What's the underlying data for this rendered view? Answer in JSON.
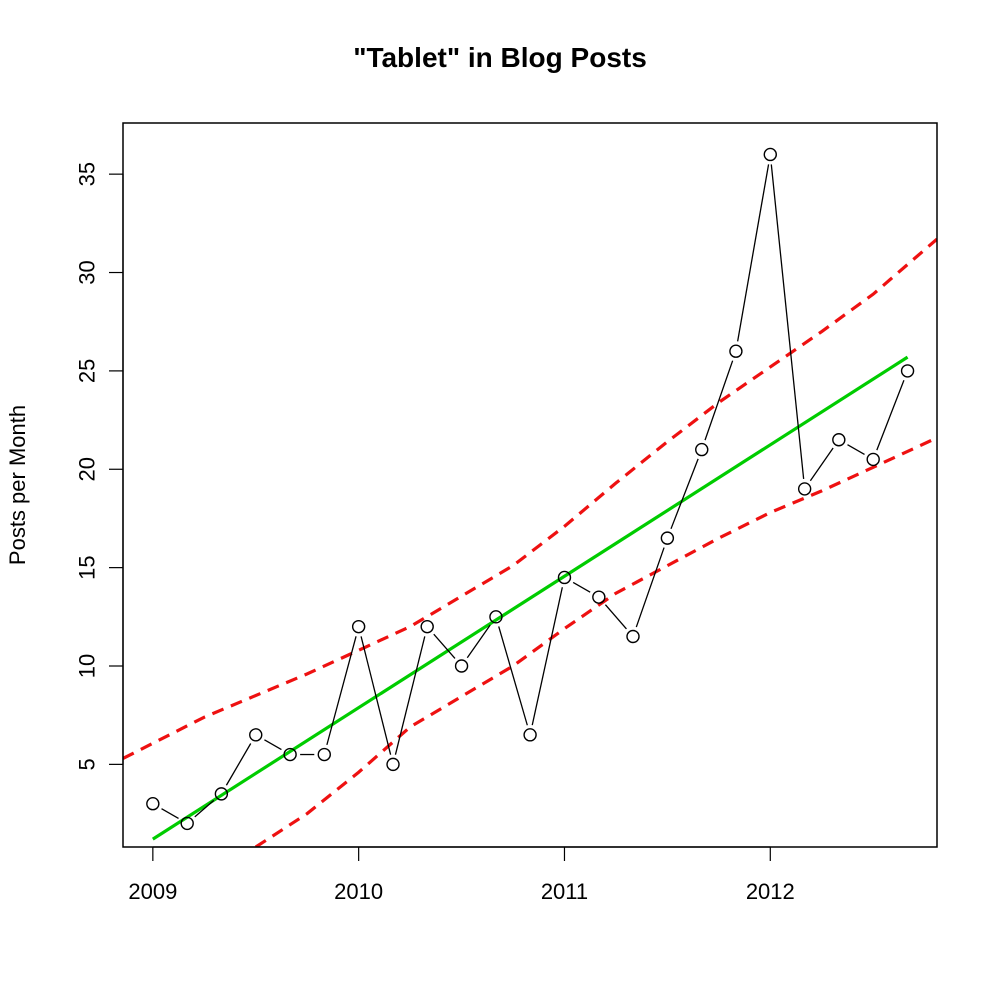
{
  "chart_data": {
    "type": "line",
    "title": "\"Tablet\" in Blog Posts",
    "xlabel": "",
    "ylabel": "Posts per Month",
    "xlim": [
      2008.855,
      2012.81
    ],
    "ylim": [
      0.8,
      37.6
    ],
    "x_ticks": [
      2009,
      2010,
      2011,
      2012
    ],
    "y_ticks": [
      5,
      10,
      15,
      20,
      25,
      30,
      35
    ],
    "grid": false,
    "legend": "none",
    "colors": {
      "observed": "#000000",
      "fit": "#00cc00",
      "band": "#ee1111"
    },
    "series": [
      {
        "kind": "observed",
        "style": "line-with-open-circles",
        "x": [
          2009.0,
          2009.167,
          2009.333,
          2009.5,
          2009.667,
          2009.833,
          2010.0,
          2010.167,
          2010.333,
          2010.5,
          2010.667,
          2010.833,
          2011.0,
          2011.167,
          2011.333,
          2011.5,
          2011.667,
          2011.833,
          2012.0,
          2012.167,
          2012.333,
          2012.5,
          2012.667
        ],
        "y": [
          3.0,
          2.0,
          3.5,
          6.5,
          5.5,
          5.5,
          12.0,
          5.0,
          12.0,
          10.0,
          12.5,
          6.5,
          14.5,
          13.5,
          11.5,
          16.5,
          21.0,
          26.0,
          36.0,
          19.0,
          21.5,
          20.5,
          25.0
        ]
      },
      {
        "kind": "fit",
        "style": "solid",
        "x": [
          2009.0,
          2012.667
        ],
        "y": [
          1.2,
          25.7
        ]
      },
      {
        "kind": "upper-band",
        "style": "dashed",
        "x": [
          2008.855,
          2009.25,
          2009.75,
          2010.25,
          2010.75,
          2011.0,
          2011.25,
          2011.5,
          2011.75,
          2012.0,
          2012.25,
          2012.5,
          2012.81
        ],
        "y": [
          5.3,
          7.4,
          9.6,
          12.0,
          15.1,
          17.1,
          19.3,
          21.4,
          23.4,
          25.2,
          27.0,
          28.9,
          31.7
        ]
      },
      {
        "kind": "lower-band",
        "style": "dashed",
        "x": [
          2009.5,
          2009.75,
          2010.0,
          2010.25,
          2010.75,
          2011.0,
          2011.25,
          2011.5,
          2011.75,
          2012.0,
          2012.25,
          2012.5,
          2012.81
        ],
        "y": [
          0.8,
          2.5,
          4.6,
          6.9,
          10.0,
          11.9,
          13.7,
          15.1,
          16.5,
          17.8,
          18.9,
          20.1,
          21.6
        ]
      }
    ]
  }
}
